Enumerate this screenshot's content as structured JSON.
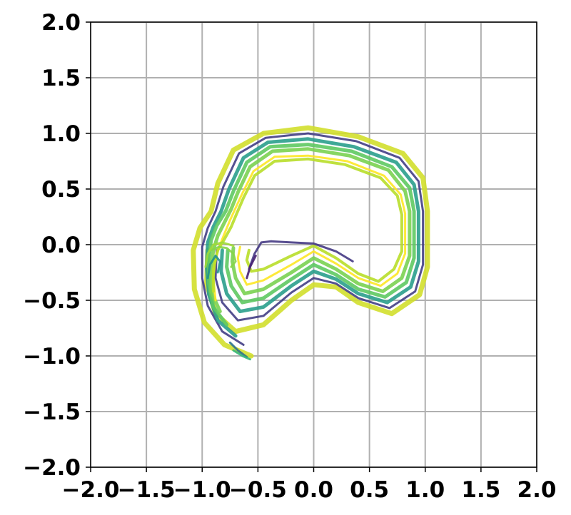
{
  "chart_data": {
    "type": "line",
    "title": "",
    "xlabel": "",
    "ylabel": "",
    "xlim": [
      -2.0,
      2.0
    ],
    "ylim": [
      -2.0,
      2.0
    ],
    "grid": true,
    "legend": "none",
    "x_ticks": [
      "−2.0",
      "−1.5",
      "−1.0",
      "−0.5",
      "0.0",
      "0.5",
      "1.0",
      "1.5",
      "2.0"
    ],
    "y_ticks": [
      "2.0",
      "1.5",
      "1.0",
      "0.5",
      "0.0",
      "−0.5",
      "−1.0",
      "−1.5",
      "−2.0"
    ],
    "tick_values": [
      -2.0,
      -1.5,
      -1.0,
      -0.5,
      0.0,
      0.5,
      1.0,
      1.5,
      2.0
    ],
    "colors": {
      "grid": "#b0b0b0",
      "axis": "#000000"
    },
    "series": [
      {
        "color": "#d2df2c",
        "width": 7,
        "points": [
          [
            -0.56,
            -1.0
          ],
          [
            -0.8,
            -0.9
          ],
          [
            -0.98,
            -0.7
          ],
          [
            -1.07,
            -0.4
          ],
          [
            -1.08,
            -0.05
          ],
          [
            -1.02,
            0.15
          ],
          [
            -0.92,
            0.3
          ],
          [
            -0.86,
            0.55
          ],
          [
            -0.72,
            0.85
          ],
          [
            -0.45,
            1.0
          ],
          [
            -0.05,
            1.05
          ],
          [
            0.4,
            0.97
          ],
          [
            0.8,
            0.82
          ],
          [
            0.98,
            0.6
          ],
          [
            1.02,
            0.3
          ],
          [
            1.02,
            -0.2
          ],
          [
            0.95,
            -0.45
          ],
          [
            0.7,
            -0.62
          ],
          [
            0.4,
            -0.52
          ],
          [
            0.2,
            -0.38
          ],
          [
            0.0,
            -0.36
          ],
          [
            -0.2,
            -0.5
          ],
          [
            -0.45,
            -0.72
          ],
          [
            -0.7,
            -0.78
          ],
          [
            -0.88,
            -0.62
          ],
          [
            -0.96,
            -0.35
          ],
          [
            -0.95,
            -0.05
          ]
        ]
      },
      {
        "color": "#433e85",
        "width": 3,
        "points": [
          [
            -0.63,
            -0.9
          ],
          [
            -0.82,
            -0.78
          ],
          [
            -0.95,
            -0.55
          ],
          [
            -1.0,
            -0.3
          ],
          [
            -1.0,
            -0.02
          ],
          [
            -0.95,
            0.15
          ],
          [
            -0.88,
            0.3
          ],
          [
            -0.81,
            0.52
          ],
          [
            -0.67,
            0.82
          ],
          [
            -0.43,
            0.96
          ],
          [
            -0.05,
            1.0
          ],
          [
            0.38,
            0.93
          ],
          [
            0.77,
            0.78
          ],
          [
            0.94,
            0.57
          ],
          [
            0.98,
            0.3
          ],
          [
            0.98,
            -0.18
          ],
          [
            0.91,
            -0.42
          ],
          [
            0.68,
            -0.57
          ],
          [
            0.4,
            -0.48
          ],
          [
            0.2,
            -0.35
          ],
          [
            0.0,
            -0.3
          ],
          [
            -0.2,
            -0.43
          ],
          [
            -0.45,
            -0.64
          ],
          [
            -0.68,
            -0.68
          ],
          [
            -0.82,
            -0.52
          ],
          [
            -0.88,
            -0.3
          ],
          [
            -0.87,
            -0.05
          ]
        ]
      },
      {
        "color": "#2a9e8c",
        "width": 5,
        "points": [
          [
            -0.7,
            -0.82
          ],
          [
            -0.86,
            -0.68
          ],
          [
            -0.94,
            -0.45
          ],
          [
            -0.96,
            -0.2
          ],
          [
            -0.95,
            0.02
          ],
          [
            -0.9,
            0.16
          ],
          [
            -0.83,
            0.3
          ],
          [
            -0.76,
            0.5
          ],
          [
            -0.63,
            0.78
          ],
          [
            -0.41,
            0.92
          ],
          [
            -0.05,
            0.95
          ],
          [
            0.36,
            0.88
          ],
          [
            0.74,
            0.74
          ],
          [
            0.9,
            0.54
          ],
          [
            0.94,
            0.3
          ],
          [
            0.94,
            -0.15
          ],
          [
            0.87,
            -0.38
          ],
          [
            0.66,
            -0.52
          ],
          [
            0.4,
            -0.44
          ],
          [
            0.2,
            -0.31
          ],
          [
            0.0,
            -0.24
          ],
          [
            -0.2,
            -0.37
          ],
          [
            -0.45,
            -0.56
          ],
          [
            -0.66,
            -0.6
          ],
          [
            -0.78,
            -0.44
          ],
          [
            -0.83,
            -0.24
          ],
          [
            -0.82,
            -0.05
          ]
        ]
      },
      {
        "color": "#5ec962",
        "width": 5,
        "points": [
          [
            -0.78,
            -0.72
          ],
          [
            -0.9,
            -0.56
          ],
          [
            -0.94,
            -0.35
          ],
          [
            -0.94,
            -0.12
          ],
          [
            -0.92,
            0.04
          ],
          [
            -0.87,
            0.17
          ],
          [
            -0.79,
            0.3
          ],
          [
            -0.72,
            0.48
          ],
          [
            -0.6,
            0.74
          ],
          [
            -0.39,
            0.88
          ],
          [
            -0.05,
            0.9
          ],
          [
            0.34,
            0.84
          ],
          [
            0.7,
            0.7
          ],
          [
            0.86,
            0.51
          ],
          [
            0.9,
            0.3
          ],
          [
            0.9,
            -0.12
          ],
          [
            0.83,
            -0.34
          ],
          [
            0.64,
            -0.47
          ],
          [
            0.4,
            -0.4
          ],
          [
            0.2,
            -0.27
          ],
          [
            0.0,
            -0.18
          ],
          [
            -0.2,
            -0.31
          ],
          [
            -0.45,
            -0.48
          ],
          [
            -0.64,
            -0.52
          ],
          [
            -0.74,
            -0.37
          ],
          [
            -0.78,
            -0.2
          ],
          [
            -0.77,
            -0.05
          ]
        ]
      },
      {
        "color": "#7ad151",
        "width": 5,
        "points": [
          [
            -0.84,
            -0.6
          ],
          [
            -0.92,
            -0.42
          ],
          [
            -0.92,
            -0.22
          ],
          [
            -0.9,
            -0.05
          ],
          [
            -0.86,
            0.08
          ],
          [
            -0.8,
            0.2
          ],
          [
            -0.74,
            0.32
          ],
          [
            -0.68,
            0.47
          ],
          [
            -0.57,
            0.7
          ],
          [
            -0.37,
            0.84
          ],
          [
            -0.05,
            0.86
          ],
          [
            0.32,
            0.8
          ],
          [
            0.67,
            0.67
          ],
          [
            0.82,
            0.48
          ],
          [
            0.86,
            0.3
          ],
          [
            0.86,
            -0.1
          ],
          [
            0.79,
            -0.3
          ],
          [
            0.62,
            -0.42
          ],
          [
            0.4,
            -0.35
          ],
          [
            0.2,
            -0.22
          ],
          [
            0.0,
            -0.12
          ],
          [
            -0.2,
            -0.25
          ],
          [
            -0.45,
            -0.4
          ],
          [
            -0.62,
            -0.44
          ],
          [
            -0.7,
            -0.3
          ],
          [
            -0.73,
            -0.15
          ],
          [
            -0.72,
            -0.03
          ]
        ]
      },
      {
        "color": "#fde725",
        "width": 3,
        "points": [
          [
            -0.88,
            -0.5
          ],
          [
            -0.9,
            -0.3
          ],
          [
            -0.88,
            -0.12
          ],
          [
            -0.84,
            0.0
          ],
          [
            -0.8,
            0.1
          ],
          [
            -0.75,
            0.22
          ],
          [
            -0.7,
            0.33
          ],
          [
            -0.64,
            0.46
          ],
          [
            -0.54,
            0.66
          ],
          [
            -0.35,
            0.79
          ],
          [
            -0.05,
            0.8
          ],
          [
            0.3,
            0.75
          ],
          [
            0.63,
            0.62
          ],
          [
            0.78,
            0.45
          ],
          [
            0.82,
            0.28
          ],
          [
            0.82,
            -0.08
          ],
          [
            0.75,
            -0.26
          ],
          [
            0.6,
            -0.37
          ],
          [
            0.4,
            -0.3
          ],
          [
            0.2,
            -0.17
          ],
          [
            0.0,
            -0.06
          ],
          [
            -0.2,
            -0.18
          ],
          [
            -0.45,
            -0.32
          ],
          [
            -0.6,
            -0.36
          ],
          [
            -0.66,
            -0.24
          ],
          [
            -0.68,
            -0.12
          ],
          [
            -0.66,
            -0.02
          ]
        ]
      },
      {
        "color": "#b8de29",
        "width": 4,
        "points": [
          [
            -0.9,
            -0.42
          ],
          [
            -0.9,
            -0.22
          ],
          [
            -0.86,
            -0.05
          ],
          [
            -0.8,
            0.05
          ],
          [
            -0.74,
            0.16
          ],
          [
            -0.69,
            0.28
          ],
          [
            -0.63,
            0.42
          ],
          [
            -0.53,
            0.62
          ],
          [
            -0.35,
            0.75
          ],
          [
            -0.05,
            0.77
          ],
          [
            0.28,
            0.72
          ],
          [
            0.6,
            0.6
          ],
          [
            0.75,
            0.44
          ],
          [
            0.79,
            0.27
          ],
          [
            0.79,
            -0.06
          ],
          [
            0.72,
            -0.22
          ],
          [
            0.58,
            -0.33
          ],
          [
            0.4,
            -0.26
          ],
          [
            0.2,
            -0.12
          ],
          [
            0.0,
            -0.01
          ],
          [
            -0.2,
            -0.1
          ],
          [
            -0.45,
            -0.22
          ],
          [
            -0.56,
            -0.24
          ],
          [
            -0.6,
            -0.14
          ],
          [
            -0.58,
            -0.05
          ]
        ]
      },
      {
        "color": "#443983",
        "width": 3,
        "points": [
          [
            -0.58,
            -0.22
          ],
          [
            -0.53,
            -0.08
          ],
          [
            -0.47,
            0.02
          ],
          [
            -0.38,
            0.03
          ],
          [
            -0.2,
            0.02
          ],
          [
            0.0,
            0.01
          ],
          [
            0.2,
            -0.06
          ],
          [
            0.35,
            -0.15
          ]
        ]
      },
      {
        "color": "#482173",
        "width": 3,
        "points": [
          [
            -0.6,
            -0.3
          ],
          [
            -0.57,
            -0.2
          ],
          [
            -0.52,
            -0.1
          ]
        ]
      },
      {
        "color": "#21918c",
        "width": 3,
        "points": [
          [
            -0.95,
            -0.3
          ],
          [
            -0.93,
            -0.18
          ],
          [
            -0.88,
            -0.1
          ],
          [
            -0.84,
            -0.15
          ],
          [
            -0.86,
            -0.25
          ]
        ]
      },
      {
        "color": "#86d549",
        "width": 3,
        "points": [
          [
            -0.92,
            -0.05
          ],
          [
            -0.85,
            -0.02
          ],
          [
            -0.78,
            -0.03
          ],
          [
            -0.72,
            -0.08
          ],
          [
            -0.7,
            -0.15
          ],
          [
            -0.74,
            -0.2
          ]
        ]
      },
      {
        "color": "#a0da39",
        "width": 3,
        "points": [
          [
            -0.97,
            -0.2
          ],
          [
            -0.95,
            -0.08
          ],
          [
            -0.9,
            0.0
          ],
          [
            -0.82,
            0.02
          ],
          [
            -0.72,
            -0.01
          ]
        ]
      },
      {
        "color": "#2c728e",
        "width": 3,
        "points": [
          [
            -0.75,
            -0.88
          ],
          [
            -0.68,
            -0.95
          ],
          [
            -0.6,
            -1.01
          ]
        ]
      },
      {
        "color": "#35b779",
        "width": 3,
        "points": [
          [
            -0.72,
            -0.95
          ],
          [
            -0.64,
            -1.0
          ],
          [
            -0.57,
            -1.03
          ]
        ]
      }
    ]
  }
}
